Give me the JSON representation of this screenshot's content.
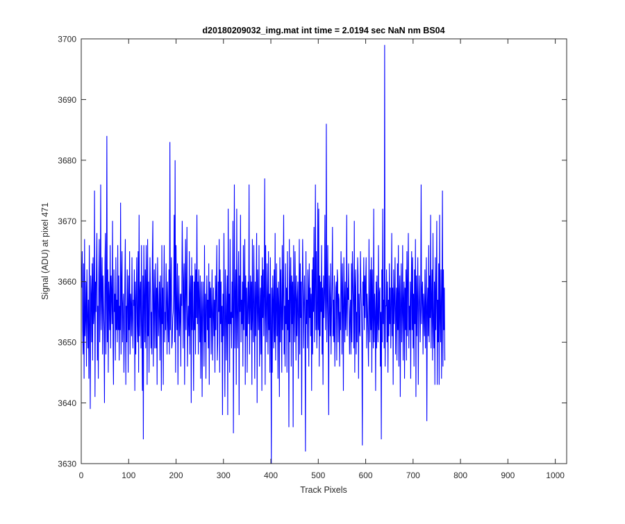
{
  "chart_data": {
    "type": "line",
    "title": "d20180209032_img.mat int time = 2.0194 sec  NaN nm BS04",
    "xlabel": "Track Pixels",
    "ylabel": "Signal (ADU) at pixel 471",
    "xlim": [
      0,
      1024
    ],
    "ylim": [
      3630,
      3700
    ],
    "xticks": [
      0,
      100,
      200,
      300,
      400,
      500,
      600,
      700,
      800,
      900,
      1000
    ],
    "yticks": [
      3630,
      3640,
      3650,
      3660,
      3670,
      3680,
      3690,
      3700
    ],
    "x_start": 1,
    "x_step": 1,
    "grid": false,
    "legend": "none",
    "line_color": "#0000ff",
    "series": [
      {
        "values": [
          3659,
          3665,
          3652,
          3648,
          3663,
          3644,
          3667,
          3651,
          3654,
          3660,
          3646,
          3662,
          3655,
          3649,
          3657,
          3644,
          3666,
          3653,
          3639,
          3661,
          3658,
          3650,
          3663,
          3647,
          3664,
          3653,
          3655,
          3675,
          3641,
          3660,
          3655,
          3662,
          3668,
          3647,
          3656,
          3644,
          3661,
          3667,
          3650,
          3657,
          3676,
          3652,
          3659,
          3664,
          3648,
          3661,
          3656,
          3652,
          3640,
          3663,
          3668,
          3648,
          3657,
          3684,
          3650,
          3662,
          3645,
          3660,
          3657,
          3652,
          3666,
          3649,
          3661,
          3658,
          3653,
          3670,
          3650,
          3643,
          3662,
          3655,
          3658,
          3647,
          3664,
          3652,
          3657,
          3650,
          3666,
          3652,
          3661,
          3647,
          3656,
          3652,
          3673,
          3648,
          3660,
          3665,
          3650,
          3656,
          3658,
          3645,
          3652,
          3660,
          3667,
          3643,
          3656,
          3650,
          3662,
          3657,
          3645,
          3661,
          3652,
          3665,
          3648,
          3658,
          3656,
          3651,
          3664,
          3654,
          3649,
          3657,
          3656,
          3662,
          3642,
          3660,
          3648,
          3657,
          3664,
          3653,
          3650,
          3665,
          3645,
          3671,
          3651,
          3658,
          3660,
          3649,
          3666,
          3652,
          3642,
          3661,
          3634,
          3666,
          3658,
          3650,
          3662,
          3649,
          3666,
          3660,
          3643,
          3667,
          3651,
          3660,
          3645,
          3656,
          3664,
          3658,
          3649,
          3655,
          3648,
          3664,
          3670,
          3646,
          3657,
          3662,
          3649,
          3656,
          3663,
          3649,
          3659,
          3643,
          3664,
          3658,
          3651,
          3655,
          3660,
          3647,
          3661,
          3655,
          3642,
          3666,
          3653,
          3659,
          3643,
          3658,
          3666,
          3650,
          3655,
          3652,
          3663,
          3657,
          3648,
          3660,
          3654,
          3650,
          3662,
          3648,
          3683,
          3652,
          3658,
          3664,
          3649,
          3650,
          3654,
          3655,
          3658,
          3671,
          3650,
          3680,
          3645,
          3666,
          3656,
          3652,
          3663,
          3643,
          3656,
          3661,
          3651,
          3654,
          3658,
          3646,
          3658,
          3656,
          3670,
          3662,
          3649,
          3660,
          3663,
          3643,
          3658,
          3667,
          3652,
          3659,
          3669,
          3646,
          3653,
          3656,
          3651,
          3665,
          3648,
          3658,
          3661,
          3640,
          3664,
          3652,
          3661,
          3653,
          3642,
          3660,
          3652,
          3663,
          3648,
          3662,
          3654,
          3671,
          3653,
          3660,
          3648,
          3662,
          3657,
          3650,
          3661,
          3644,
          3654,
          3660,
          3641,
          3655,
          3660,
          3653,
          3646,
          3666,
          3650,
          3658,
          3644,
          3656,
          3661,
          3652,
          3657,
          3649,
          3663,
          3643,
          3660,
          3654,
          3659,
          3648,
          3656,
          3662,
          3647,
          3654,
          3659,
          3651,
          3657,
          3645,
          3661,
          3652,
          3659,
          3666,
          3647,
          3650,
          3660,
          3655,
          3667,
          3645,
          3662,
          3653,
          3660,
          3650,
          3656,
          3638,
          3658,
          3651,
          3668,
          3653,
          3641,
          3662,
          3656,
          3647,
          3656,
          3661,
          3638,
          3672,
          3653,
          3658,
          3645,
          3667,
          3653,
          3655,
          3649,
          3660,
          3654,
          3670,
          3635,
          3656,
          3676,
          3649,
          3657,
          3662,
          3643,
          3672,
          3655,
          3649,
          3659,
          3665,
          3638,
          3661,
          3655,
          3671,
          3650,
          3657,
          3653,
          3660,
          3646,
          3666,
          3652,
          3658,
          3667,
          3643,
          3661,
          3651,
          3659,
          3645,
          3656,
          3660,
          3653,
          3676,
          3648,
          3656,
          3661,
          3652,
          3660,
          3643,
          3667,
          3654,
          3650,
          3666,
          3657,
          3644,
          3660,
          3651,
          3658,
          3668,
          3640,
          3662,
          3656,
          3652,
          3666,
          3646,
          3655,
          3659,
          3648,
          3661,
          3642,
          3664,
          3654,
          3662,
          3651,
          3658,
          3677,
          3643,
          3666,
          3655,
          3650,
          3663,
          3657,
          3648,
          3665,
          3652,
          3658,
          3645,
          3664,
          3654,
          3630,
          3659,
          3645,
          3661,
          3657,
          3649,
          3662,
          3650,
          3668,
          3647,
          3655,
          3663,
          3651,
          3659,
          3644,
          3660,
          3656,
          3641,
          3664,
          3650,
          3662,
          3655,
          3645,
          3666,
          3652,
          3658,
          3671,
          3648,
          3656,
          3646,
          3663,
          3653,
          3659,
          3645,
          3665,
          3652,
          3657,
          3636,
          3667,
          3650,
          3659,
          3664,
          3646,
          3661,
          3653,
          3660,
          3636,
          3666,
          3656,
          3650,
          3665,
          3658,
          3647,
          3661,
          3651,
          3657,
          3660,
          3644,
          3655,
          3667,
          3648,
          3663,
          3654,
          3660,
          3638,
          3657,
          3667,
          3660,
          3649,
          3657,
          3661,
          3652,
          3632,
          3665,
          3653,
          3657,
          3649,
          3662,
          3659,
          3646,
          3663,
          3654,
          3659,
          3651,
          3658,
          3642,
          3662,
          3648,
          3664,
          3655,
          3669,
          3650,
          3659,
          3676,
          3652,
          3665,
          3649,
          3653,
          3673,
          3652,
          3672,
          3646,
          3661,
          3651,
          3660,
          3655,
          3666,
          3648,
          3659,
          3643,
          3661,
          3654,
          3658,
          3671,
          3652,
          3657,
          3686,
          3650,
          3656,
          3666,
          3653,
          3638,
          3661,
          3657,
          3651,
          3663,
          3648,
          3655,
          3660,
          3669,
          3651,
          3657,
          3650,
          3661,
          3646,
          3652,
          3659,
          3660,
          3647,
          3662,
          3660,
          3650,
          3658,
          3657,
          3646,
          3655,
          3652,
          3665,
          3659,
          3648,
          3663,
          3656,
          3642,
          3664,
          3658,
          3650,
          3660,
          3652,
          3655,
          3671,
          3651,
          3659,
          3657,
          3663,
          3654,
          3648,
          3655,
          3657,
          3648,
          3663,
          3650,
          3665,
          3660,
          3656,
          3649,
          3670,
          3645,
          3659,
          3662,
          3648,
          3655,
          3650,
          3664,
          3661,
          3644,
          3658,
          3652,
          3651,
          3665,
          3659,
          3656,
          3650,
          3633,
          3660,
          3656,
          3664,
          3652,
          3661,
          3654,
          3660,
          3664,
          3649,
          3658,
          3655,
          3651,
          3646,
          3667,
          3656,
          3650,
          3662,
          3652,
          3664,
          3645,
          3662,
          3655,
          3649,
          3672,
          3650,
          3658,
          3655,
          3642,
          3660,
          3649,
          3661,
          3653,
          3650,
          3666,
          3652,
          3658,
          3659,
          3646,
          3655,
          3634,
          3662,
          3650,
          3672,
          3653,
          3657,
          3649,
          3699,
          3646,
          3656,
          3656,
          3662,
          3650,
          3660,
          3645,
          3657,
          3651,
          3663,
          3653,
          3659,
          3649,
          3656,
          3668,
          3651,
          3659,
          3643,
          3662,
          3653,
          3657,
          3664,
          3648,
          3655,
          3659,
          3647,
          3663,
          3652,
          3666,
          3646,
          3658,
          3661,
          3641,
          3657,
          3663,
          3650,
          3655,
          3666,
          3647,
          3657,
          3660,
          3644,
          3659,
          3652,
          3662,
          3647,
          3665,
          3651,
          3660,
          3668,
          3649,
          3656,
          3652,
          3660,
          3644,
          3658,
          3665,
          3652,
          3664,
          3649,
          3658,
          3646,
          3662,
          3653,
          3667,
          3641,
          3661,
          3651,
          3658,
          3664,
          3643,
          3655,
          3661,
          3656,
          3650,
          3657,
          3676,
          3653,
          3658,
          3660,
          3648,
          3658,
          3655,
          3651,
          3662,
          3649,
          3657,
          3664,
          3637,
          3656,
          3659,
          3651,
          3666,
          3650,
          3661,
          3654,
          3671,
          3649,
          3657,
          3662,
          3647,
          3668,
          3653,
          3649,
          3660,
          3643,
          3664,
          3652,
          3658,
          3670,
          3643,
          3657,
          3650,
          3663,
          3643,
          3671,
          3654,
          3650,
          3662,
          3644,
          3658,
          3675,
          3646,
          3662,
          3652,
          3659,
          3647
        ]
      }
    ]
  }
}
